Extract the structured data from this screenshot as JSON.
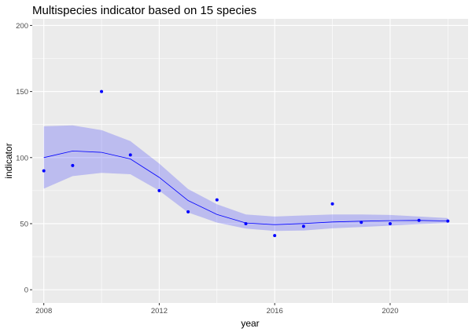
{
  "chart_data": {
    "type": "line",
    "title": "Multispecies indicator based on 15 species",
    "xlabel": "year",
    "ylabel": "indicator",
    "xlim": [
      2007.6,
      2022.7
    ],
    "ylim": [
      -10,
      205
    ],
    "x_ticks": [
      2008,
      2012,
      2016,
      2020
    ],
    "y_ticks": [
      0,
      50,
      100,
      150,
      200
    ],
    "grid": true,
    "colors": {
      "panel": "#EBEBEB",
      "grid": "#FFFFFF",
      "points": "#0000FF",
      "line": "#0000FF",
      "band": "#0000FF",
      "band_opacity": 0.2
    },
    "x": [
      2008,
      2009,
      2010,
      2011,
      2012,
      2013,
      2014,
      2015,
      2016,
      2017,
      2018,
      2019,
      2020,
      2021,
      2022
    ],
    "series": [
      {
        "name": "observed indicator",
        "kind": "points",
        "values": [
          90,
          94,
          150,
          102,
          75,
          59,
          68,
          50,
          41,
          48,
          65,
          51,
          50,
          52.5,
          52
        ]
      },
      {
        "name": "smoothed trend",
        "kind": "line",
        "values": [
          100,
          105,
          104,
          99,
          85,
          67.5,
          57,
          50.5,
          49.3,
          50.1,
          51.3,
          51.9,
          52.3,
          52.5,
          52
        ]
      },
      {
        "name": "confidence band upper",
        "kind": "band-upper",
        "values": [
          123.7,
          124.4,
          120.8,
          112.5,
          95.5,
          76.2,
          64.7,
          57,
          55.4,
          56.2,
          57,
          57,
          56.6,
          55.4,
          54.2
        ]
      },
      {
        "name": "confidence band lower",
        "kind": "band-lower",
        "values": [
          76.5,
          86,
          88.4,
          87.4,
          75,
          58.5,
          50.8,
          46.3,
          44.5,
          44.8,
          46.5,
          47.5,
          48.5,
          49.7,
          50.5
        ]
      }
    ]
  }
}
